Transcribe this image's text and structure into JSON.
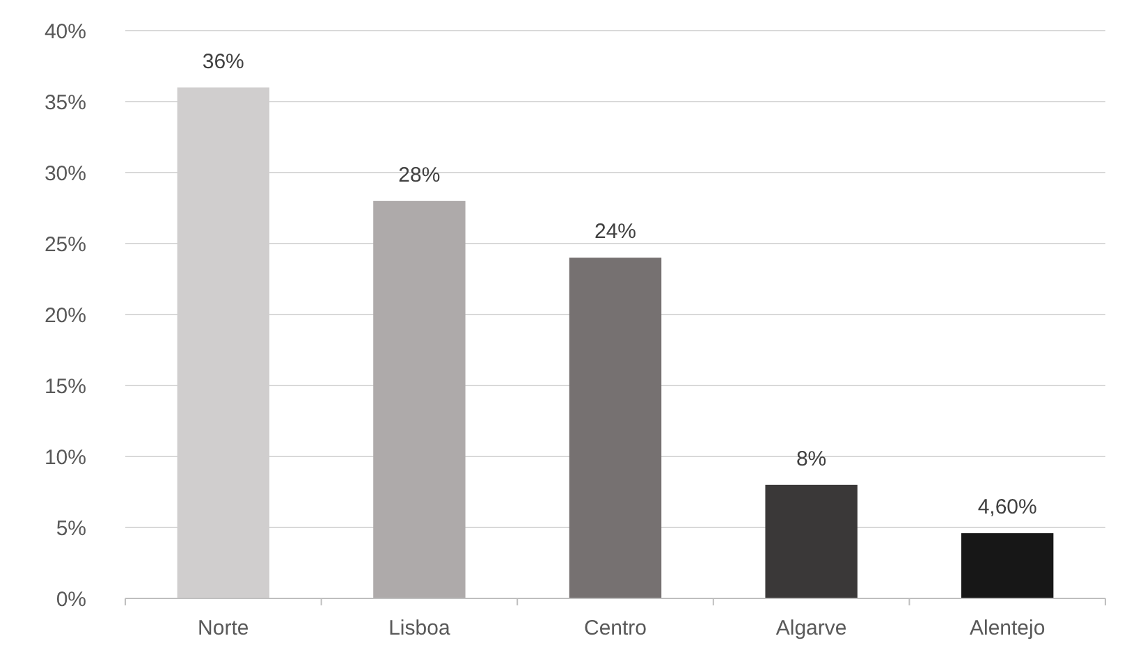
{
  "chart_data": {
    "type": "bar",
    "categories": [
      "Norte",
      "Lisboa",
      "Centro",
      "Algarve",
      "Alentejo"
    ],
    "values": [
      36,
      28,
      24,
      8,
      4.6
    ],
    "colors": [
      "#d0cece",
      "#aeaaaa",
      "#767171",
      "#3a3838",
      "#171717"
    ],
    "value_labels": [
      "36%",
      "28%",
      "24%",
      "8%",
      "4,60%"
    ],
    "ylim": [
      0,
      40
    ],
    "yticks": [
      {
        "value": 0,
        "label": "0%"
      },
      {
        "value": 5,
        "label": "5%"
      },
      {
        "value": 10,
        "label": "10%"
      },
      {
        "value": 15,
        "label": "15%"
      },
      {
        "value": 20,
        "label": "20%"
      },
      {
        "value": 25,
        "label": "25%"
      },
      {
        "value": 30,
        "label": "30%"
      },
      {
        "value": 35,
        "label": "35%"
      },
      {
        "value": 40,
        "label": "40%"
      }
    ],
    "grid": "y"
  }
}
